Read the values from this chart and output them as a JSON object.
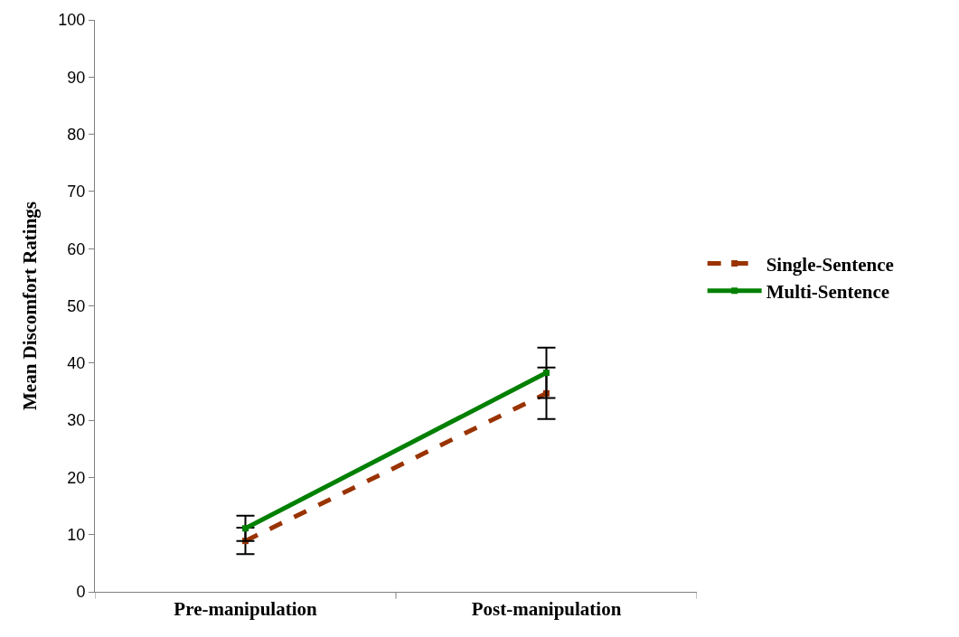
{
  "chart_data": {
    "type": "line",
    "ylabel": "Mean Discomfort Ratings",
    "categories": [
      "Pre-manipulation",
      "Post-manipulation"
    ],
    "series": [
      {
        "name": "Single-Sentence",
        "color": "#993300",
        "values": [
          8.9,
          34.7
        ],
        "errors": [
          2.3,
          4.5
        ],
        "line_style": "dashed"
      },
      {
        "name": "Multi-Sentence",
        "color": "#008000",
        "values": [
          11.1,
          38.3
        ],
        "errors": [
          2.2,
          4.4
        ],
        "line_style": "solid"
      }
    ],
    "ylim": [
      0,
      100
    ],
    "yticks": [
      0,
      10,
      20,
      30,
      40,
      50,
      60,
      70,
      80,
      90,
      100
    ],
    "legend": "right",
    "marker": "square"
  }
}
